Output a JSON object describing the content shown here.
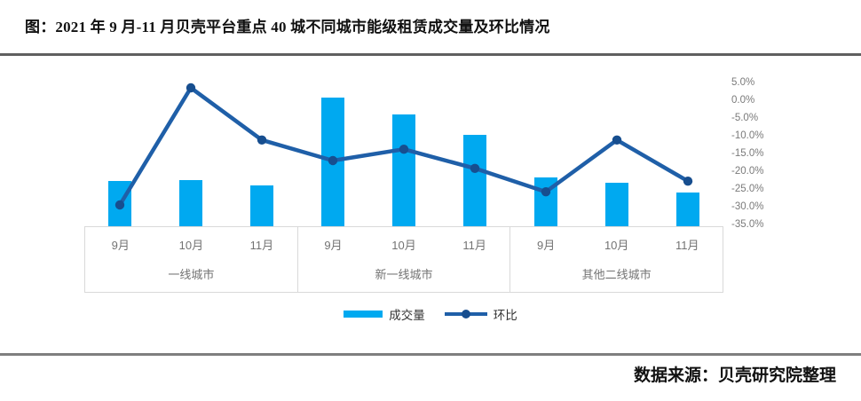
{
  "title": "图：2021 年 9 月-11 月贝壳平台重点 40 城不同城市能级租赁成交量及环比情况",
  "source_note": "数据来源：贝壳研究院整理",
  "colors": {
    "bar": "#00a9f0",
    "line": "#1f5fa8",
    "marker": "#174e8f",
    "axis_text": "#7a7a7a",
    "category_text": "#737373",
    "grid_border": "#d9d9d9",
    "top_rule": "#5f5f5f",
    "bottom_rule": "#7f7f7f"
  },
  "chart_data": {
    "type": "bar+line combo",
    "title": "2021 年 9 月-11 月贝壳平台重点 40 城不同城市能级租赁成交量及环比情况",
    "groups": [
      {
        "label": "一线城市",
        "months": [
          "9月",
          "10月",
          "11月"
        ]
      },
      {
        "label": "新一线城市",
        "months": [
          "9月",
          "10月",
          "11月"
        ]
      },
      {
        "label": "其他二线城市",
        "months": [
          "9月",
          "10月",
          "11月"
        ]
      }
    ],
    "series": [
      {
        "name": "成交量",
        "type": "bar",
        "axis": "none (no value axis shown in figure)",
        "unit": "relative height",
        "values": [
          51,
          52,
          46,
          145,
          126,
          103,
          55,
          49,
          38
        ]
      },
      {
        "name": "环比",
        "type": "line",
        "axis": "right",
        "unit": "%",
        "values": [
          -29.5,
          3.5,
          -11.2,
          -17.0,
          -13.8,
          -19.2,
          -25.8,
          -11.2,
          -22.8
        ]
      }
    ],
    "right_axis": {
      "ticks": [
        "5.0%",
        "0.0%",
        "-5.0%",
        "-10.0%",
        "-15.0%",
        "-20.0%",
        "-25.0%",
        "-30.0%",
        "-35.0%"
      ],
      "max": 5.0,
      "min": -35.0,
      "step": -5.0
    },
    "legend": [
      {
        "label": "成交量",
        "swatch": "bar"
      },
      {
        "label": "环比",
        "swatch": "line-with-marker"
      }
    ],
    "grid": "off",
    "legend_position": "bottom-center"
  }
}
